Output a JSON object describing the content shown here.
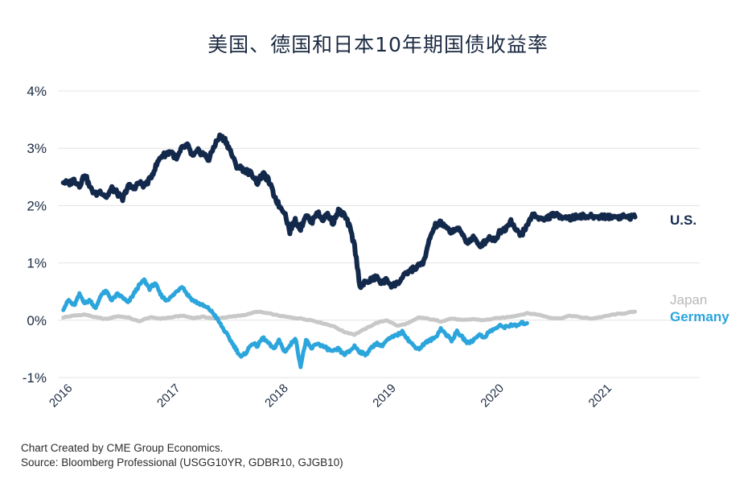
{
  "chart_data": {
    "type": "line",
    "title": "美国、德国和日本10年期国债收益率",
    "xlabel": "",
    "ylabel": "",
    "ylim": [
      -1,
      4
    ],
    "xlim": [
      2015.95,
      2021.9
    ],
    "y_ticks": [
      {
        "value": 4,
        "label": "4%"
      },
      {
        "value": 3,
        "label": "3%"
      },
      {
        "value": 2,
        "label": "2%"
      },
      {
        "value": 1,
        "label": "1%"
      },
      {
        "value": 0,
        "label": "0%"
      },
      {
        "value": -1,
        "label": "-1%"
      }
    ],
    "x_ticks": [
      {
        "value": 2016,
        "label": "2016"
      },
      {
        "value": 2017,
        "label": "2017"
      },
      {
        "value": 2018,
        "label": "2018"
      },
      {
        "value": 2019,
        "label": "2019"
      },
      {
        "value": 2020,
        "label": "2020"
      },
      {
        "value": 2021,
        "label": "2021"
      }
    ],
    "grid": true,
    "series": [
      {
        "name": "U.S.",
        "color": "#13294b",
        "x": [
          2016.0,
          2016.05,
          2016.1,
          2016.15,
          2016.2,
          2016.25,
          2016.3,
          2016.35,
          2016.4,
          2016.45,
          2016.5,
          2016.55,
          2016.6,
          2016.65,
          2016.7,
          2016.75,
          2016.8,
          2016.85,
          2016.9,
          2016.95,
          2017.0,
          2017.05,
          2017.1,
          2017.15,
          2017.2,
          2017.25,
          2017.3,
          2017.35,
          2017.4,
          2017.45,
          2017.5,
          2017.55,
          2017.6,
          2017.65,
          2017.7,
          2017.75,
          2017.8,
          2017.85,
          2017.9,
          2017.95,
          2018.0,
          2018.05,
          2018.1,
          2018.15,
          2018.2,
          2018.25,
          2018.3,
          2018.35,
          2018.4,
          2018.45,
          2018.5,
          2018.55,
          2018.6,
          2018.65,
          2018.7,
          2018.75,
          2018.8,
          2018.85,
          2018.9,
          2018.95,
          2019.0,
          2019.05,
          2019.1,
          2019.15,
          2019.2,
          2019.25,
          2019.3,
          2019.35,
          2019.4,
          2019.45,
          2019.5,
          2019.55,
          2019.6,
          2019.65,
          2019.7,
          2019.75,
          2019.8,
          2019.85,
          2019.9,
          2019.95,
          2020.0,
          2020.05,
          2020.1,
          2020.15,
          2020.2,
          2020.25,
          2020.3,
          2020.35,
          2020.4,
          2020.45,
          2020.5,
          2020.55,
          2020.6,
          2020.65,
          2020.7,
          2020.75,
          2020.8,
          2020.85,
          2020.9,
          2020.95,
          2021.0,
          2021.05,
          2021.1,
          2021.15,
          2021.2,
          2021.25,
          2021.3
        ],
        "values": [
          2.42,
          2.38,
          2.45,
          2.35,
          2.55,
          2.3,
          2.2,
          2.25,
          2.15,
          2.3,
          2.22,
          2.1,
          2.35,
          2.3,
          2.4,
          2.35,
          2.45,
          2.65,
          2.85,
          2.9,
          2.95,
          2.8,
          3.0,
          3.05,
          2.85,
          2.95,
          2.9,
          2.8,
          3.05,
          3.2,
          3.15,
          2.95,
          2.7,
          2.65,
          2.6,
          2.55,
          2.4,
          2.55,
          2.45,
          2.2,
          2.0,
          1.9,
          1.55,
          1.75,
          1.6,
          1.85,
          1.7,
          1.9,
          1.75,
          1.85,
          1.7,
          1.9,
          1.85,
          1.65,
          1.3,
          0.6,
          0.65,
          0.7,
          0.75,
          0.65,
          0.7,
          0.6,
          0.65,
          0.75,
          0.85,
          0.9,
          0.95,
          1.05,
          1.45,
          1.65,
          1.7,
          1.6,
          1.55,
          1.6,
          1.5,
          1.35,
          1.45,
          1.3,
          1.35,
          1.45,
          1.4,
          1.55,
          1.6,
          1.75,
          1.55,
          1.5,
          1.65,
          1.85,
          1.8,
          1.75,
          1.8,
          1.85,
          1.8,
          1.82,
          1.78,
          1.8,
          1.82,
          1.8,
          1.81,
          1.8,
          1.82,
          1.8,
          1.81,
          1.8,
          1.82,
          1.8,
          1.8
        ]
      },
      {
        "name": "Japan",
        "color": "#c8c8c8",
        "x": [
          2016.0,
          2016.1,
          2016.2,
          2016.3,
          2016.4,
          2016.5,
          2016.6,
          2016.7,
          2016.8,
          2016.9,
          2017.0,
          2017.1,
          2017.2,
          2017.3,
          2017.4,
          2017.5,
          2017.6,
          2017.7,
          2017.8,
          2017.9,
          2018.0,
          2018.1,
          2018.2,
          2018.3,
          2018.4,
          2018.5,
          2018.6,
          2018.7,
          2018.8,
          2018.9,
          2019.0,
          2019.1,
          2019.2,
          2019.3,
          2019.4,
          2019.5,
          2019.6,
          2019.7,
          2019.8,
          2019.9,
          2020.0,
          2020.1,
          2020.2,
          2020.3,
          2020.4,
          2020.5,
          2020.6,
          2020.7,
          2020.8,
          2020.9,
          2021.0,
          2021.1,
          2021.2,
          2021.3
        ],
        "values": [
          0.05,
          0.08,
          0.1,
          0.05,
          0.02,
          0.07,
          0.05,
          -0.02,
          0.05,
          0.03,
          0.05,
          0.08,
          0.04,
          0.06,
          0.03,
          0.05,
          0.07,
          0.1,
          0.15,
          0.12,
          0.08,
          0.05,
          0.03,
          0.0,
          -0.05,
          -0.1,
          -0.2,
          -0.25,
          -0.15,
          -0.05,
          0.0,
          -0.1,
          -0.05,
          0.05,
          0.02,
          -0.02,
          0.03,
          0.0,
          0.02,
          0.0,
          0.03,
          0.05,
          0.08,
          0.12,
          0.1,
          0.05,
          0.03,
          0.08,
          0.05,
          0.03,
          0.06,
          0.1,
          0.12,
          0.15
        ]
      },
      {
        "name": "Germany",
        "color": "#2ba5db",
        "x": [
          2016.0,
          2016.05,
          2016.1,
          2016.15,
          2016.2,
          2016.25,
          2016.3,
          2016.35,
          2016.4,
          2016.45,
          2016.5,
          2016.55,
          2016.6,
          2016.65,
          2016.7,
          2016.75,
          2016.8,
          2016.85,
          2016.9,
          2016.95,
          2017.0,
          2017.05,
          2017.1,
          2017.15,
          2017.2,
          2017.25,
          2017.3,
          2017.35,
          2017.4,
          2017.45,
          2017.5,
          2017.55,
          2017.6,
          2017.65,
          2017.7,
          2017.75,
          2017.8,
          2017.85,
          2017.9,
          2017.95,
          2018.0,
          2018.05,
          2018.1,
          2018.15,
          2018.2,
          2018.25,
          2018.3,
          2018.35,
          2018.4,
          2018.45,
          2018.5,
          2018.55,
          2018.6,
          2018.65,
          2018.7,
          2018.75,
          2018.8,
          2018.85,
          2018.9,
          2018.95,
          2019.0,
          2019.05,
          2019.1,
          2019.15,
          2019.2,
          2019.25,
          2019.3,
          2019.35,
          2019.4,
          2019.45,
          2019.5,
          2019.55,
          2019.6,
          2019.65,
          2019.7,
          2019.75,
          2019.8,
          2019.85,
          2019.9,
          2019.95,
          2020.0,
          2020.05,
          2020.1,
          2020.15,
          2020.2,
          2020.25,
          2020.3
        ],
        "values": [
          0.2,
          0.35,
          0.25,
          0.45,
          0.3,
          0.35,
          0.2,
          0.45,
          0.5,
          0.35,
          0.45,
          0.4,
          0.3,
          0.45,
          0.6,
          0.7,
          0.55,
          0.65,
          0.45,
          0.35,
          0.4,
          0.5,
          0.6,
          0.45,
          0.35,
          0.3,
          0.25,
          0.2,
          0.1,
          -0.05,
          -0.2,
          -0.35,
          -0.5,
          -0.65,
          -0.55,
          -0.4,
          -0.45,
          -0.3,
          -0.4,
          -0.5,
          -0.35,
          -0.55,
          -0.45,
          -0.3,
          -0.8,
          -0.35,
          -0.5,
          -0.4,
          -0.45,
          -0.5,
          -0.55,
          -0.5,
          -0.6,
          -0.55,
          -0.45,
          -0.55,
          -0.6,
          -0.5,
          -0.4,
          -0.45,
          -0.35,
          -0.3,
          -0.25,
          -0.2,
          -0.35,
          -0.45,
          -0.5,
          -0.4,
          -0.35,
          -0.3,
          -0.15,
          -0.25,
          -0.35,
          -0.2,
          -0.3,
          -0.4,
          -0.35,
          -0.25,
          -0.3,
          -0.2,
          -0.15,
          -0.1,
          -0.12,
          -0.08,
          -0.1,
          -0.05,
          -0.05
        ]
      }
    ],
    "legend": [
      {
        "label": "U.S.",
        "color": "#13294b",
        "placement": "right"
      },
      {
        "label": "Japan",
        "color": "#b8b8b8",
        "placement": "right"
      },
      {
        "label": "Germany",
        "color": "#2ba5db",
        "placement": "right"
      }
    ]
  },
  "footnote": {
    "line1": "Chart Created by CME Group Economics.",
    "line2": "Source: Bloomberg Professional (USGG10YR, GDBR10, GJGB10)"
  },
  "colors": {
    "us": "#13294b",
    "japan": "#c8c8c8",
    "germany": "#2ba5db",
    "grid": "#e3e3e3",
    "text": "#1b2a41"
  }
}
